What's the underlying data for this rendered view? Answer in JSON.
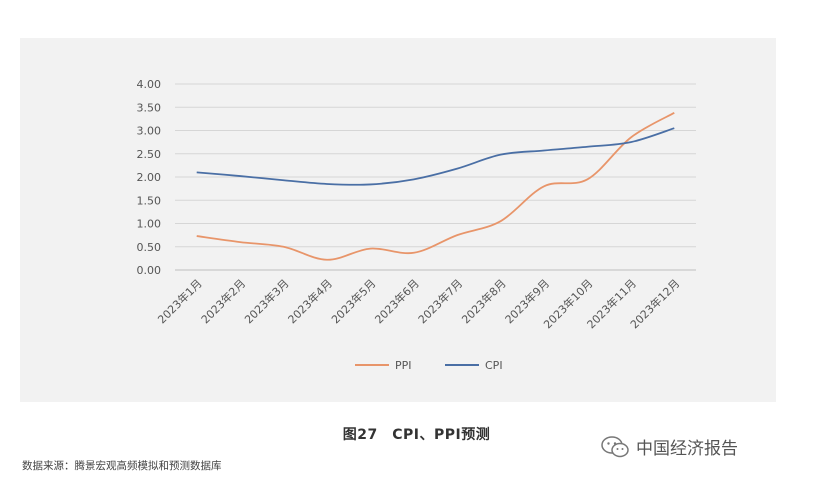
{
  "chart_data": {
    "type": "line",
    "title": "",
    "xlabel": "",
    "ylabel": "",
    "categories": [
      "2023年1月",
      "2023年2月",
      "2023年3月",
      "2023年4月",
      "2023年5月",
      "2023年6月",
      "2023年7月",
      "2023年8月",
      "2023年9月",
      "2023年10月",
      "2023年11月",
      "2023年12月"
    ],
    "y_ticks": [
      "0.00",
      "0.50",
      "1.00",
      "1.50",
      "2.00",
      "2.50",
      "3.00",
      "3.50",
      "4.00"
    ],
    "ylim": [
      0,
      4
    ],
    "grid": "horizontal",
    "legend_position": "bottom",
    "series": [
      {
        "name": "PPI",
        "color": "#e8956a",
        "values": [
          0.73,
          0.6,
          0.5,
          0.22,
          0.46,
          0.37,
          0.75,
          1.05,
          1.8,
          1.95,
          2.85,
          3.38
        ]
      },
      {
        "name": "CPI",
        "color": "#4a6fa5",
        "values": [
          2.1,
          2.02,
          1.93,
          1.85,
          1.84,
          1.95,
          2.18,
          2.48,
          2.57,
          2.65,
          2.75,
          3.05
        ]
      }
    ]
  },
  "caption": "图27　CPI、PPI预测",
  "source": "数据来源：腾景宏观高频模拟和预测数据库",
  "watermark": {
    "icon": "wechat-icon",
    "text": "中国经济报告"
  }
}
